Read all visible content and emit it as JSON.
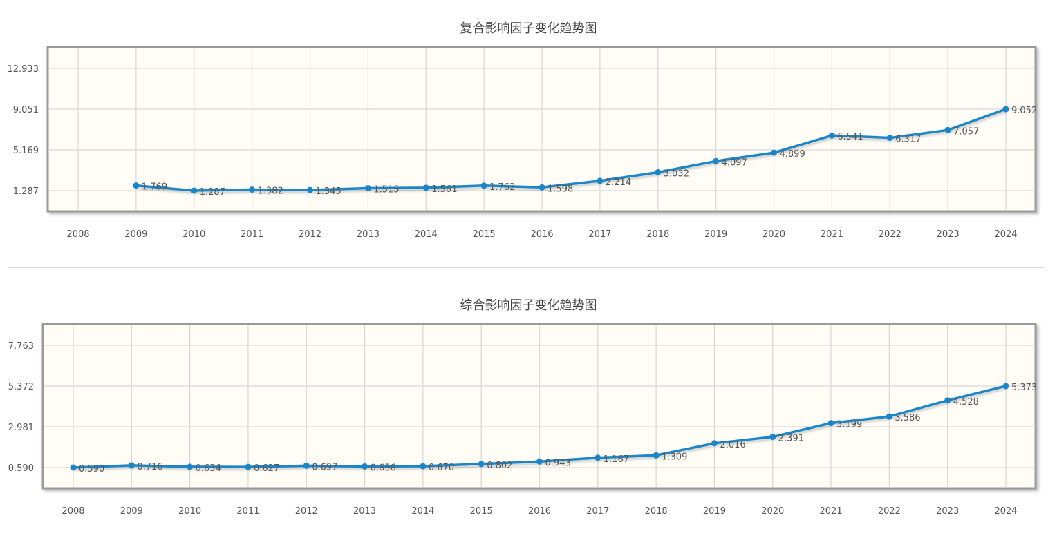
{
  "chart_data": [
    {
      "type": "line",
      "title": "复合影响因子变化趋势图",
      "xlabel": "",
      "ylabel": "",
      "categories": [
        "2008",
        "2009",
        "2010",
        "2011",
        "2012",
        "2013",
        "2014",
        "2015",
        "2016",
        "2017",
        "2018",
        "2019",
        "2020",
        "2021",
        "2022",
        "2023",
        "2024"
      ],
      "series": [
        {
          "name": "复合影响因子",
          "values": [
            null,
            1.769,
            1.287,
            1.382,
            1.345,
            1.515,
            1.561,
            1.762,
            1.598,
            2.214,
            3.032,
            4.097,
            4.899,
            6.541,
            6.317,
            7.057,
            9.052
          ]
        }
      ],
      "y_ticks": [
        1.287,
        5.169,
        9.051,
        12.933
      ],
      "y_tick_labels": [
        "1.287",
        "5.169",
        "9.051",
        "12.933"
      ],
      "value_labels": [
        "",
        "1.769",
        "1.287",
        "1.382",
        "1.345",
        "1.515",
        "1.561",
        "1.762",
        "1.598",
        "2.214",
        "3.032",
        "4.097",
        "4.899",
        "6.541",
        "6.317",
        "7.057",
        "9.052"
      ],
      "grid": true,
      "legend": "none",
      "line_color": "#1a86c8"
    },
    {
      "type": "line",
      "title": "综合影响因子变化趋势图",
      "xlabel": "",
      "ylabel": "",
      "categories": [
        "2008",
        "2009",
        "2010",
        "2011",
        "2012",
        "2013",
        "2014",
        "2015",
        "2016",
        "2017",
        "2018",
        "2019",
        "2020",
        "2021",
        "2022",
        "2023",
        "2024"
      ],
      "series": [
        {
          "name": "综合影响因子",
          "values": [
            0.59,
            0.716,
            0.634,
            0.627,
            0.697,
            0.656,
            0.67,
            0.802,
            0.943,
            1.167,
            1.309,
            2.016,
            2.391,
            3.199,
            3.586,
            4.528,
            5.373
          ]
        }
      ],
      "y_ticks": [
        0.59,
        2.981,
        5.372,
        7.763
      ],
      "y_tick_labels": [
        "0.590",
        "2.981",
        "5.372",
        "7.763"
      ],
      "value_labels": [
        "0.590",
        "0.716",
        "0.634",
        "0.627",
        "0.697",
        "0.656",
        "0.670",
        "0.802",
        "0.943",
        "1.167",
        "1.309",
        "2.016",
        "2.391",
        "3.199",
        "3.586",
        "4.528",
        "5.373"
      ],
      "grid": true,
      "legend": "none",
      "line_color": "#1a86c8"
    }
  ],
  "colors": {
    "plot_bg": "#fffdf6",
    "grid": "#d9d9d9",
    "border": "#9a9a9a",
    "line": "#1a86c8",
    "text": "#555555"
  }
}
